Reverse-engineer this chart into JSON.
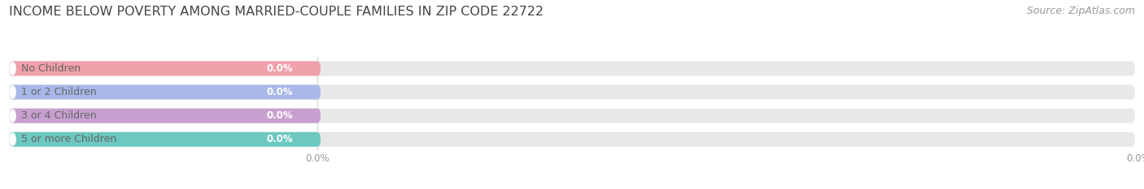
{
  "title": "INCOME BELOW POVERTY AMONG MARRIED-COUPLE FAMILIES IN ZIP CODE 22722",
  "source": "Source: ZipAtlas.com",
  "categories": [
    "No Children",
    "1 or 2 Children",
    "3 or 4 Children",
    "5 or more Children"
  ],
  "values": [
    0.0,
    0.0,
    0.0,
    0.0
  ],
  "bar_colors": [
    "#f0a0aa",
    "#a8b8e8",
    "#c8a0d0",
    "#6cc8c0"
  ],
  "bar_bg_color": "#e8e8e8",
  "text_color": "#666666",
  "value_color": "#ffffff",
  "background_color": "#ffffff",
  "title_fontsize": 11.5,
  "source_fontsize": 9,
  "cat_label_fontsize": 9,
  "val_label_fontsize": 8.5,
  "tick_fontsize": 8.5,
  "figsize": [
    14.06,
    2.33
  ],
  "dpi": 100
}
